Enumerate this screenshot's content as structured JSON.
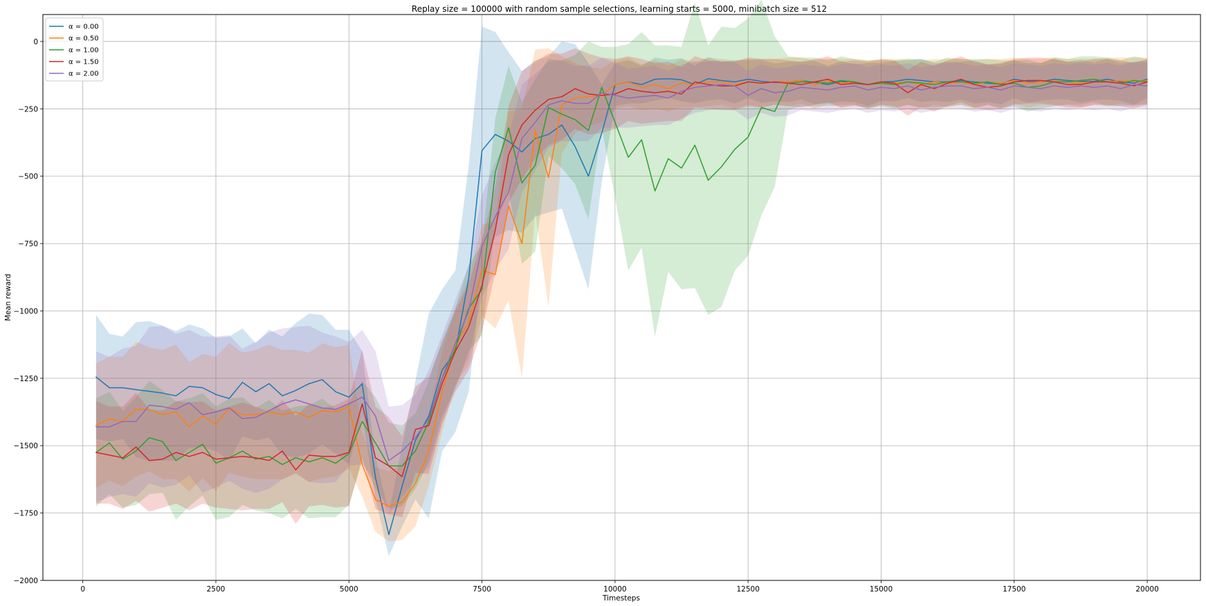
{
  "chart_data": {
    "type": "line",
    "title": "Replay size = 100000 with random sample selections, learning starts = 5000, minibatch size = 512",
    "xlabel": "Timesteps",
    "ylabel": "Mean reward",
    "xlim": [
      -750,
      21000
    ],
    "ylim": [
      -2000,
      100
    ],
    "xticks": [
      0,
      2500,
      5000,
      7500,
      10000,
      12500,
      15000,
      17500,
      20000
    ],
    "xtick_labels": [
      "0",
      "2500",
      "5000",
      "7500",
      "10000",
      "12500",
      "15000",
      "17500",
      "20000"
    ],
    "yticks": [
      -2000,
      -1750,
      -1500,
      -1250,
      -1000,
      -750,
      -500,
      -250,
      0
    ],
    "ytick_labels": [
      "−2000",
      "−1750",
      "−1500",
      "−1250",
      "−1000",
      "−750",
      "−500",
      "−250",
      "0"
    ],
    "grid": true,
    "legend_position": "top-left",
    "shaded_band": "mean ± std",
    "x": [
      250,
      500,
      750,
      1000,
      1250,
      1500,
      1750,
      2000,
      2250,
      2500,
      2750,
      3000,
      3250,
      3500,
      3750,
      4000,
      4250,
      4500,
      4750,
      5000,
      5250,
      5500,
      5750,
      6000,
      6250,
      6500,
      6750,
      7000,
      7250,
      7500,
      7750,
      8000,
      8250,
      8500,
      8750,
      9000,
      9250,
      9500,
      9750,
      10000,
      10250,
      10500,
      10750,
      11000,
      11250,
      11500,
      11750,
      12000,
      12250,
      12500,
      12750,
      13000,
      13250,
      13500,
      13750,
      14000,
      14250,
      14500,
      14750,
      15000,
      15250,
      15500,
      15750,
      16000,
      16250,
      16500,
      16750,
      17000,
      17250,
      17500,
      17750,
      18000,
      18250,
      18500,
      18750,
      19000,
      19250,
      19500,
      19750,
      20000
    ],
    "series": [
      {
        "name": "α = 0.00",
        "color": "#1f77b4",
        "values": [
          -1245,
          -1285,
          -1285,
          -1292,
          -1298,
          -1305,
          -1315,
          -1280,
          -1285,
          -1310,
          -1325,
          -1265,
          -1300,
          -1270,
          -1315,
          -1295,
          -1270,
          -1255,
          -1300,
          -1320,
          -1270,
          -1620,
          -1830,
          -1650,
          -1480,
          -1390,
          -1220,
          -1150,
          -880,
          -405,
          -345,
          -370,
          -410,
          -360,
          -345,
          -310,
          -390,
          -500,
          -340,
          -160,
          -150,
          -160,
          -140,
          -138,
          -142,
          -160,
          -138,
          -145,
          -150,
          -140,
          -148,
          -152,
          -150,
          -145,
          -152,
          -160,
          -148,
          -155,
          -160,
          -150,
          -148,
          -140,
          -145,
          -150,
          -150,
          -145,
          -150,
          -155,
          -158,
          -140,
          -148,
          -150,
          -140,
          -145,
          -148,
          -148,
          -140,
          -150,
          -155,
          -140
        ],
        "std": [
          230,
          200,
          190,
          250,
          260,
          250,
          240,
          230,
          220,
          210,
          230,
          200,
          180,
          200,
          220,
          250,
          260,
          240,
          230,
          250,
          120,
          80,
          80,
          150,
          220,
          380,
          300,
          300,
          420,
          460,
          380,
          330,
          300,
          290,
          290,
          310,
          380,
          420,
          180,
          80,
          80,
          70,
          80,
          70,
          80,
          70,
          80,
          70,
          80,
          70,
          80,
          70,
          75,
          70,
          80,
          70,
          75,
          70,
          80,
          70,
          75,
          70,
          80,
          70,
          75,
          70,
          80,
          70,
          75,
          70,
          80,
          70,
          75,
          70,
          80,
          70,
          75,
          70,
          80,
          70
        ]
      },
      {
        "name": "α = 0.50",
        "color": "#ff7f0e",
        "values": [
          -1425,
          -1400,
          -1410,
          -1365,
          -1365,
          -1385,
          -1375,
          -1430,
          -1390,
          -1420,
          -1360,
          -1385,
          -1385,
          -1375,
          -1385,
          -1375,
          -1395,
          -1370,
          -1375,
          -1355,
          -1570,
          -1700,
          -1725,
          -1710,
          -1640,
          -1520,
          -1300,
          -1130,
          -1040,
          -850,
          -865,
          -610,
          -750,
          -330,
          -505,
          -235,
          -210,
          -205,
          -200,
          -160,
          -150,
          -170,
          -160,
          -175,
          -155,
          -160,
          -150,
          -150,
          -160,
          -150,
          -155,
          -150,
          -150,
          -145,
          -160,
          -148,
          -155,
          -150,
          -160,
          -150,
          -155,
          -150,
          -160,
          -150,
          -155,
          -150,
          -160,
          -150,
          -155,
          -145,
          -155,
          -150,
          -148,
          -150,
          -155,
          -150,
          -150,
          -145,
          -150,
          -145
        ],
        "std": [
          230,
          230,
          240,
          250,
          230,
          240,
          250,
          240,
          230,
          250,
          240,
          230,
          240,
          250,
          240,
          230,
          240,
          250,
          240,
          230,
          120,
          120,
          130,
          140,
          160,
          130,
          150,
          140,
          160,
          170,
          200,
          350,
          500,
          300,
          480,
          180,
          130,
          110,
          100,
          90,
          90,
          85,
          90,
          85,
          90,
          85,
          90,
          85,
          90,
          85,
          90,
          85,
          90,
          85,
          90,
          85,
          90,
          85,
          90,
          85,
          90,
          85,
          90,
          85,
          90,
          85,
          90,
          85,
          90,
          85,
          90,
          85,
          90,
          85,
          90,
          85,
          90,
          85,
          90,
          85
        ]
      },
      {
        "name": "α = 1.00",
        "color": "#2ca02c",
        "values": [
          -1525,
          -1490,
          -1550,
          -1520,
          -1470,
          -1485,
          -1555,
          -1525,
          -1495,
          -1565,
          -1545,
          -1520,
          -1550,
          -1540,
          -1570,
          -1545,
          -1560,
          -1545,
          -1565,
          -1530,
          -1410,
          -1490,
          -1575,
          -1575,
          -1520,
          -1410,
          -1250,
          -1140,
          -990,
          -920,
          -485,
          -320,
          -525,
          -460,
          -245,
          -270,
          -290,
          -330,
          -170,
          -300,
          -430,
          -365,
          -555,
          -435,
          -470,
          -385,
          -515,
          -465,
          -400,
          -355,
          -245,
          -260,
          -155,
          -150,
          -150,
          -155,
          -145,
          -150,
          -160,
          -155,
          -160,
          -150,
          -155,
          -160,
          -150,
          -150,
          -155,
          -150,
          -160,
          -155,
          -170,
          -165,
          -150,
          -150,
          -145,
          -140,
          -150,
          -155,
          -145,
          -150
        ],
        "std": [
          200,
          190,
          180,
          200,
          210,
          190,
          220,
          200,
          190,
          210,
          220,
          200,
          190,
          210,
          200,
          190,
          210,
          220,
          200,
          190,
          150,
          170,
          160,
          150,
          140,
          150,
          140,
          150,
          160,
          170,
          200,
          230,
          300,
          320,
          180,
          200,
          240,
          330,
          150,
          280,
          420,
          400,
          540,
          420,
          450,
          530,
          500,
          520,
          450,
          440,
          400,
          280,
          100,
          90,
          90,
          85,
          90,
          85,
          90,
          85,
          90,
          85,
          90,
          85,
          90,
          85,
          90,
          85,
          90,
          85,
          90,
          85,
          90,
          85,
          90,
          85,
          90,
          85,
          90,
          85
        ]
      },
      {
        "name": "α = 1.50",
        "color": "#d62728",
        "values": [
          -1525,
          -1535,
          -1545,
          -1505,
          -1555,
          -1550,
          -1525,
          -1540,
          -1525,
          -1550,
          -1545,
          -1540,
          -1545,
          -1555,
          -1520,
          -1590,
          -1535,
          -1540,
          -1540,
          -1525,
          -1345,
          -1545,
          -1575,
          -1615,
          -1440,
          -1425,
          -1270,
          -1150,
          -1060,
          -905,
          -700,
          -420,
          -310,
          -255,
          -215,
          -205,
          -175,
          -195,
          -200,
          -195,
          -175,
          -185,
          -190,
          -185,
          -195,
          -150,
          -160,
          -165,
          -165,
          -150,
          -155,
          -150,
          -155,
          -160,
          -150,
          -140,
          -160,
          -155,
          -160,
          -150,
          -155,
          -190,
          -160,
          -175,
          -155,
          -140,
          -160,
          -170,
          -165,
          -150,
          -145,
          -145,
          -150,
          -160,
          -160,
          -150,
          -150,
          -155,
          -165,
          -150
        ],
        "std": [
          190,
          180,
          190,
          200,
          190,
          180,
          190,
          200,
          190,
          180,
          190,
          200,
          190,
          180,
          190,
          200,
          190,
          180,
          190,
          200,
          200,
          190,
          180,
          150,
          160,
          180,
          150,
          150,
          160,
          170,
          160,
          180,
          200,
          180,
          170,
          160,
          150,
          150,
          140,
          130,
          120,
          120,
          110,
          110,
          100,
          95,
          90,
          90,
          90,
          90,
          90,
          85,
          85,
          85,
          85,
          85,
          85,
          85,
          85,
          85,
          85,
          85,
          85,
          85,
          85,
          85,
          85,
          85,
          85,
          85,
          85,
          85,
          85,
          85,
          85,
          85,
          85,
          85,
          85,
          85
        ]
      },
      {
        "name": "α = 2.00",
        "color": "#9467bd",
        "values": [
          -1430,
          -1430,
          -1410,
          -1410,
          -1350,
          -1355,
          -1365,
          -1340,
          -1385,
          -1375,
          -1360,
          -1400,
          -1395,
          -1370,
          -1345,
          -1330,
          -1345,
          -1360,
          -1365,
          -1345,
          -1320,
          -1390,
          -1555,
          -1520,
          -1470,
          -1400,
          -1250,
          -1120,
          -1000,
          -760,
          -650,
          -560,
          -360,
          -300,
          -235,
          -220,
          -230,
          -230,
          -190,
          -200,
          -210,
          -205,
          -200,
          -210,
          -185,
          -170,
          -165,
          -160,
          -165,
          -200,
          -175,
          -190,
          -185,
          -170,
          -175,
          -180,
          -170,
          -165,
          -180,
          -170,
          -175,
          -165,
          -180,
          -170,
          -165,
          -165,
          -175,
          -170,
          -180,
          -165,
          -170,
          -175,
          -165,
          -170,
          -165,
          -170,
          -165,
          -175,
          -160,
          -165
        ],
        "std": [
          280,
          260,
          270,
          280,
          290,
          300,
          280,
          270,
          290,
          280,
          270,
          260,
          280,
          290,
          280,
          270,
          290,
          280,
          270,
          230,
          250,
          240,
          200,
          170,
          160,
          180,
          160,
          160,
          170,
          190,
          200,
          210,
          200,
          180,
          160,
          150,
          140,
          140,
          130,
          120,
          110,
          110,
          110,
          100,
          100,
          95,
          90,
          90,
          90,
          90,
          90,
          90,
          90,
          85,
          85,
          85,
          85,
          85,
          85,
          85,
          85,
          85,
          85,
          85,
          85,
          85,
          85,
          85,
          85,
          85,
          85,
          85,
          85,
          85,
          85,
          85,
          85,
          85,
          85,
          85
        ]
      }
    ]
  }
}
